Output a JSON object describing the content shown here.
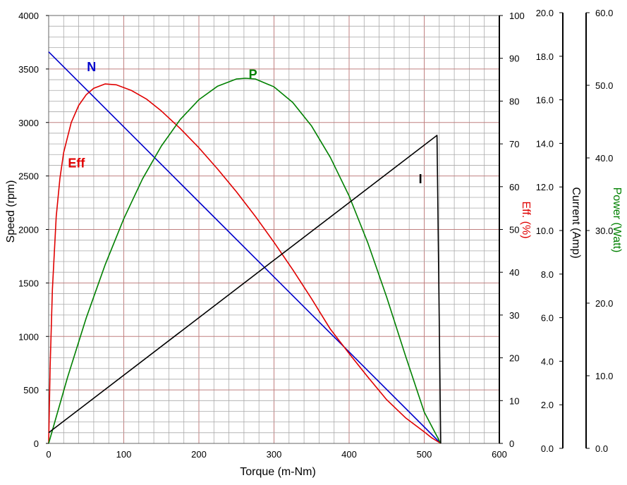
{
  "chart_data": {
    "type": "line",
    "xlabel": "Torque (m-Nm)",
    "xlim": [
      0,
      600
    ],
    "x_ticks": [
      "0",
      "100",
      "200",
      "300",
      "400",
      "500",
      "600"
    ],
    "axes": {
      "speed": {
        "label": "Speed (rpm)",
        "range": [
          0,
          4000
        ],
        "ticks": [
          "0",
          "500",
          "1000",
          "1500",
          "2000",
          "2500",
          "3000",
          "3500",
          "4000"
        ],
        "color": "#000000"
      },
      "eff": {
        "label": "Eff. (%)",
        "range": [
          0,
          100
        ],
        "ticks": [
          "0",
          "10",
          "20",
          "30",
          "40",
          "50",
          "60",
          "70",
          "80",
          "90",
          "100"
        ],
        "color": "#e00000"
      },
      "current": {
        "label": "Current (Amp)",
        "range": [
          0,
          20
        ],
        "ticks": [
          "0.0",
          "2.0",
          "4.0",
          "6.0",
          "8.0",
          "10.0",
          "12.0",
          "14.0",
          "16.0",
          "18.0",
          "20.0"
        ],
        "color": "#000000"
      },
      "power": {
        "label": "Power (Watt)",
        "range": [
          0,
          60
        ],
        "ticks": [
          "0.0",
          "10.0",
          "20.0",
          "30.0",
          "40.0",
          "50.0",
          "60.0"
        ],
        "color": "#008000"
      }
    },
    "grid": true,
    "series": [
      {
        "name": "N",
        "axis": "speed",
        "color": "#0000cc",
        "x": [
          0,
          522
        ],
        "y": [
          3660,
          0
        ]
      },
      {
        "name": "Eff",
        "axis": "eff",
        "color": "#e00000",
        "x": [
          0,
          2,
          5,
          10,
          15,
          20,
          30,
          40,
          50,
          60,
          75,
          90,
          110,
          130,
          150,
          175,
          200,
          225,
          250,
          275,
          300,
          325,
          350,
          375,
          400,
          425,
          450,
          475,
          500,
          510,
          522
        ],
        "y": [
          0,
          18,
          36,
          53,
          62,
          68,
          75,
          79,
          81.5,
          83,
          84,
          83.8,
          82.5,
          80.5,
          77.7,
          73.6,
          69.1,
          64.1,
          58.8,
          53.1,
          47,
          40.6,
          33.8,
          26.7,
          21,
          15.5,
          10.2,
          6,
          2.7,
          1.3,
          0
        ]
      },
      {
        "name": "P",
        "axis": "power",
        "color": "#008000",
        "x": [
          0,
          25,
          50,
          75,
          100,
          125,
          150,
          175,
          200,
          225,
          250,
          262,
          275,
          300,
          325,
          350,
          375,
          400,
          425,
          450,
          475,
          500,
          522
        ],
        "y": [
          0,
          9.2,
          17.6,
          25,
          31.5,
          37.1,
          41.7,
          45.4,
          48.2,
          50.1,
          51.1,
          51.2,
          51.1,
          50,
          47.8,
          44.5,
          40.1,
          34.7,
          28.1,
          20.5,
          12.3,
          4.4,
          0
        ]
      },
      {
        "name": "I",
        "axis": "current",
        "color": "#000000",
        "x": [
          0,
          517,
          522
        ],
        "y": [
          0.5,
          14.4,
          0
        ]
      }
    ],
    "annotations": [
      {
        "text": "N",
        "color": "#0000cc",
        "x": 57,
        "y": 3480
      },
      {
        "text": "P",
        "color": "#008000",
        "x": 272,
        "y": 3410
      },
      {
        "text": "Eff",
        "color": "#e00000",
        "x": 37,
        "y": 2580
      },
      {
        "text": "I",
        "color": "#000000",
        "x": 495,
        "y": 2430
      }
    ]
  }
}
